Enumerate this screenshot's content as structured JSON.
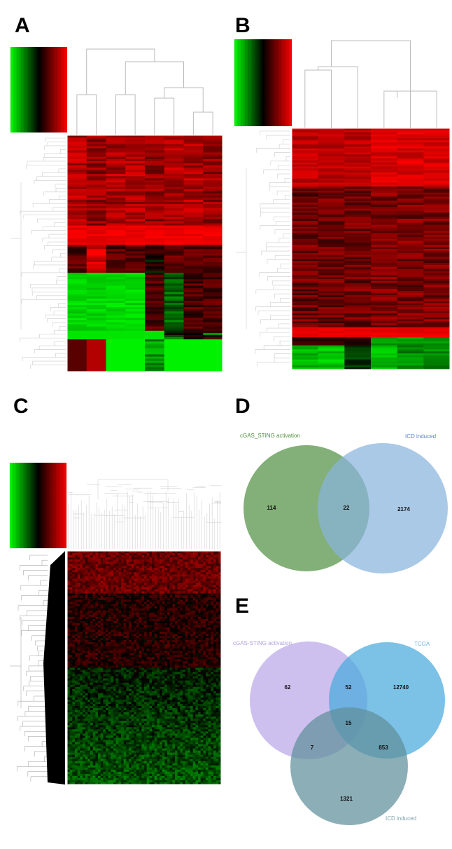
{
  "panels": {
    "a": {
      "letter": "A"
    },
    "b": {
      "letter": "B"
    },
    "c": {
      "letter": "C"
    },
    "d": {
      "letter": "D"
    },
    "e": {
      "letter": "E"
    }
  },
  "heatmap_colors": {
    "low": "#00ff00",
    "mid": "#000000",
    "high": "#ff0000"
  },
  "venn_d": {
    "sets": [
      {
        "name": "cGAS_STING activation",
        "color": "#4e8f3f",
        "label_color": "#4e8f3f"
      },
      {
        "name": "ICD induced",
        "color": "#89b4dd",
        "label_color": "#5b7fcf"
      }
    ],
    "counts": {
      "left_only": "114",
      "both": "22",
      "right_only": "2174"
    }
  },
  "venn_e": {
    "sets": [
      {
        "name": "cGAS-STING activation",
        "color": "#bfaeea",
        "label_color": "#b3a3e0"
      },
      {
        "name": "TCGA",
        "color": "#4aa9dc",
        "label_color": "#6fb6e3"
      },
      {
        "name": "ICD induced",
        "color": "#5f8f9a",
        "label_color": "#7fa5ad"
      }
    ],
    "counts": {
      "cgas_only": "62",
      "cgas_tcga": "52",
      "tcga_only": "12740",
      "all_three": "15",
      "cgas_icd": "7",
      "tcga_icd": "853",
      "icd_only": "1321"
    }
  }
}
